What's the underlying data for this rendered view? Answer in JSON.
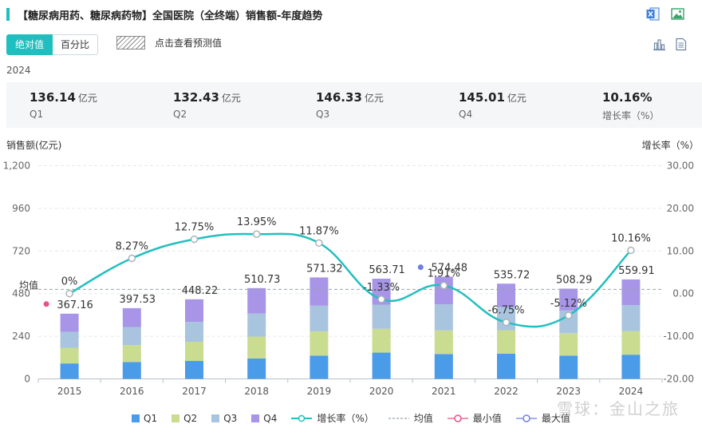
{
  "header": {
    "title": "【糖尿病用药、糖尿病药物】全国医院（全终端）销售额-年度趋势"
  },
  "tabs": [
    {
      "label": "绝对值"
    },
    {
      "label": "百分比"
    }
  ],
  "forecast_label": "点击查看预测值",
  "year_label": "2024",
  "summary": [
    {
      "value": "136.14",
      "unit": "亿元",
      "label": "Q1"
    },
    {
      "value": "132.43",
      "unit": "亿元",
      "label": "Q2"
    },
    {
      "value": "146.33",
      "unit": "亿元",
      "label": "Q3"
    },
    {
      "value": "145.01",
      "unit": "亿元",
      "label": "Q4"
    },
    {
      "value": "10.16%",
      "unit": "",
      "label": "增长率（%）"
    }
  ],
  "axis": {
    "left_title": "销售额(亿元)",
    "right_title": "增长率（%）"
  },
  "legend": {
    "q1": "Q1",
    "q2": "Q2",
    "q3": "Q3",
    "q4": "Q4",
    "growth": "增长率（%）",
    "avg": "均值",
    "min": "最小值",
    "max": "最大值"
  },
  "colors": {
    "accent": "#1fbfbf",
    "q1": "#4a9be8",
    "q2": "#c9dc8f",
    "q3": "#a9c4de",
    "q4": "#a895e8",
    "growth": "#23bfbf",
    "min": "#e8508a",
    "max": "#6f7fe6",
    "avg": "#9aa3ad"
  },
  "icons": [
    "excel-export-icon",
    "image-export-icon",
    "bar-chart-view-icon",
    "table-view-icon"
  ],
  "watermark": "雪球：金山之旅",
  "chart_data": {
    "type": "bar",
    "stacked": true,
    "categories": [
      "2015",
      "2016",
      "2017",
      "2018",
      "2019",
      "2020",
      "2021",
      "2022",
      "2023",
      "2024"
    ],
    "series": [
      {
        "name": "Q1",
        "values": [
          87,
          95,
          101,
          115,
          131,
          148,
          140,
          142,
          131,
          136.14
        ]
      },
      {
        "name": "Q2",
        "values": [
          88,
          95,
          108,
          123,
          136,
          134,
          133,
          132,
          128,
          132.43
        ]
      },
      {
        "name": "Q3",
        "values": [
          90,
          102,
          112,
          130,
          145,
          136,
          147,
          130,
          126,
          146.33
        ]
      },
      {
        "name": "Q4",
        "values": [
          102,
          106,
          127,
          143,
          159,
          146,
          155,
          132,
          123,
          145.01
        ]
      }
    ],
    "totals": [
      367.16,
      397.53,
      448.22,
      510.73,
      571.32,
      563.71,
      574.48,
      535.72,
      508.29,
      559.91
    ],
    "total_labels": [
      "367.16",
      "397.53",
      "448.22",
      "510.73",
      "571.32",
      "563.71",
      "574.48",
      "535.72",
      "508.29",
      "559.91"
    ],
    "growth": [
      0,
      8.27,
      12.75,
      13.95,
      11.87,
      -1.33,
      1.91,
      -6.75,
      -5.12,
      10.16
    ],
    "growth_labels": [
      "0%",
      "8.27%",
      "12.75%",
      "13.95%",
      "11.87%",
      "-1.33%",
      "1.91%",
      "-6.75%",
      "-5.12%",
      "10.16%"
    ],
    "average": 503.71,
    "average_label": "均值",
    "min_index": 0,
    "max_index": 6,
    "y_left": {
      "ticks": [
        0,
        240,
        480,
        720,
        960,
        1200
      ],
      "tick_labels": [
        "0",
        "240",
        "480",
        "720",
        "960",
        "1,200"
      ],
      "range": [
        0,
        1200
      ]
    },
    "y_right": {
      "ticks": [
        -20,
        -10,
        0,
        10,
        20,
        30
      ],
      "tick_labels": [
        "-20.00",
        "-10.00",
        "0.00",
        "10.00",
        "20.00",
        "30.00"
      ],
      "range": [
        -20,
        30
      ]
    },
    "grid": true,
    "legend_position": "bottom"
  }
}
